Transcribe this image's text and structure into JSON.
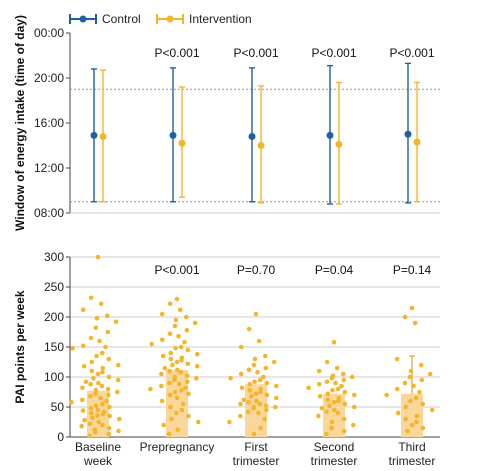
{
  "colors": {
    "control": "#1f5fa6",
    "intervention": "#f4b52a",
    "bar": "#f9d79a",
    "axis": "#444444",
    "grid": "#cccccc"
  },
  "legend": [
    "Control",
    "Intervention"
  ],
  "chart_data": [
    {
      "type": "scatter",
      "subtype": "mean-range-by-group",
      "ylabel": "Window of energy intake (time of day)",
      "yticks": [
        "08:00",
        "12:00",
        "16:00",
        "20:00",
        "00:00"
      ],
      "ylim": [
        8,
        24
      ],
      "reference_lines": [
        9,
        19
      ],
      "categories": [
        "Baseline week",
        "Prepregnancy",
        "First trimester",
        "Second trimester",
        "Third trimester"
      ],
      "p_values": [
        "",
        "P<0.001",
        "P<0.001",
        "P<0.001",
        "P<0.001"
      ],
      "series": [
        {
          "name": "Control",
          "mean": [
            14.9,
            14.9,
            14.8,
            14.9,
            15.0
          ],
          "low": [
            9.0,
            9.0,
            9.0,
            8.8,
            8.9
          ],
          "high": [
            20.8,
            20.9,
            20.9,
            21.1,
            21.3
          ]
        },
        {
          "name": "Intervention",
          "mean": [
            14.8,
            14.2,
            14.0,
            14.1,
            14.3
          ],
          "low": [
            9.0,
            9.4,
            8.9,
            8.8,
            9.0
          ],
          "high": [
            20.7,
            19.2,
            19.3,
            19.6,
            19.6
          ]
        }
      ]
    },
    {
      "type": "bar",
      "subtype": "bar-with-points",
      "ylabel": "PAI points per week",
      "yticks": [
        "0",
        "50",
        "100",
        "150",
        "200",
        "250",
        "300"
      ],
      "ylim": [
        0,
        300
      ],
      "categories": [
        "Baseline week",
        "Prepregnancy",
        "First trimester",
        "Second trimester",
        "Third trimester"
      ],
      "p_values": [
        "",
        "P<0.001",
        "P=0.70",
        "P=0.04",
        "P=0.14"
      ],
      "values": [
        77,
        112,
        88,
        72,
        72
      ],
      "error_high": [
        null,
        null,
        null,
        null,
        135
      ],
      "points": [
        [
          300,
          232,
          222,
          212,
          202,
          198,
          192,
          182,
          175,
          165,
          160,
          152,
          150,
          148,
          140,
          135,
          130,
          125,
          120,
          118,
          115,
          110,
          108,
          105,
          100,
          98,
          95,
          92,
          90,
          88,
          85,
          82,
          80,
          78,
          75,
          72,
          70,
          68,
          65,
          62,
          60,
          58,
          55,
          52,
          50,
          48,
          45,
          44,
          42,
          40,
          38,
          36,
          35,
          32,
          30,
          28,
          25,
          22,
          20,
          18,
          15,
          12,
          10,
          8,
          5,
          2
        ],
        [
          230,
          222,
          212,
          205,
          200,
          195,
          190,
          185,
          178,
          172,
          168,
          162,
          158,
          155,
          150,
          148,
          145,
          140,
          138,
          135,
          132,
          130,
          128,
          125,
          122,
          120,
          118,
          115,
          112,
          110,
          108,
          105,
          102,
          100,
          98,
          95,
          92,
          90,
          88,
          85,
          82,
          80,
          78,
          75,
          72,
          70,
          65,
          60,
          55,
          50,
          45,
          40,
          35,
          30,
          25,
          20,
          12,
          5
        ],
        [
          205,
          180,
          160,
          150,
          135,
          130,
          125,
          120,
          115,
          112,
          108,
          105,
          100,
          98,
          95,
          92,
          90,
          88,
          85,
          82,
          80,
          78,
          75,
          72,
          70,
          68,
          65,
          62,
          60,
          58,
          55,
          55,
          52,
          50,
          50,
          48,
          45,
          42,
          40,
          35,
          30,
          25,
          15,
          5
        ],
        [
          158,
          125,
          115,
          110,
          105,
          102,
          100,
          98,
          95,
          92,
          90,
          88,
          85,
          82,
          80,
          78,
          75,
          72,
          70,
          68,
          65,
          62,
          60,
          58,
          55,
          52,
          50,
          48,
          45,
          42,
          40,
          35,
          30,
          25,
          20,
          15,
          10,
          5
        ],
        [
          215,
          200,
          190,
          130,
          120,
          110,
          105,
          100,
          95,
          90,
          85,
          80,
          75,
          70,
          65,
          60,
          55,
          50,
          45,
          40,
          35,
          30,
          25,
          20,
          15,
          10
        ]
      ]
    }
  ]
}
